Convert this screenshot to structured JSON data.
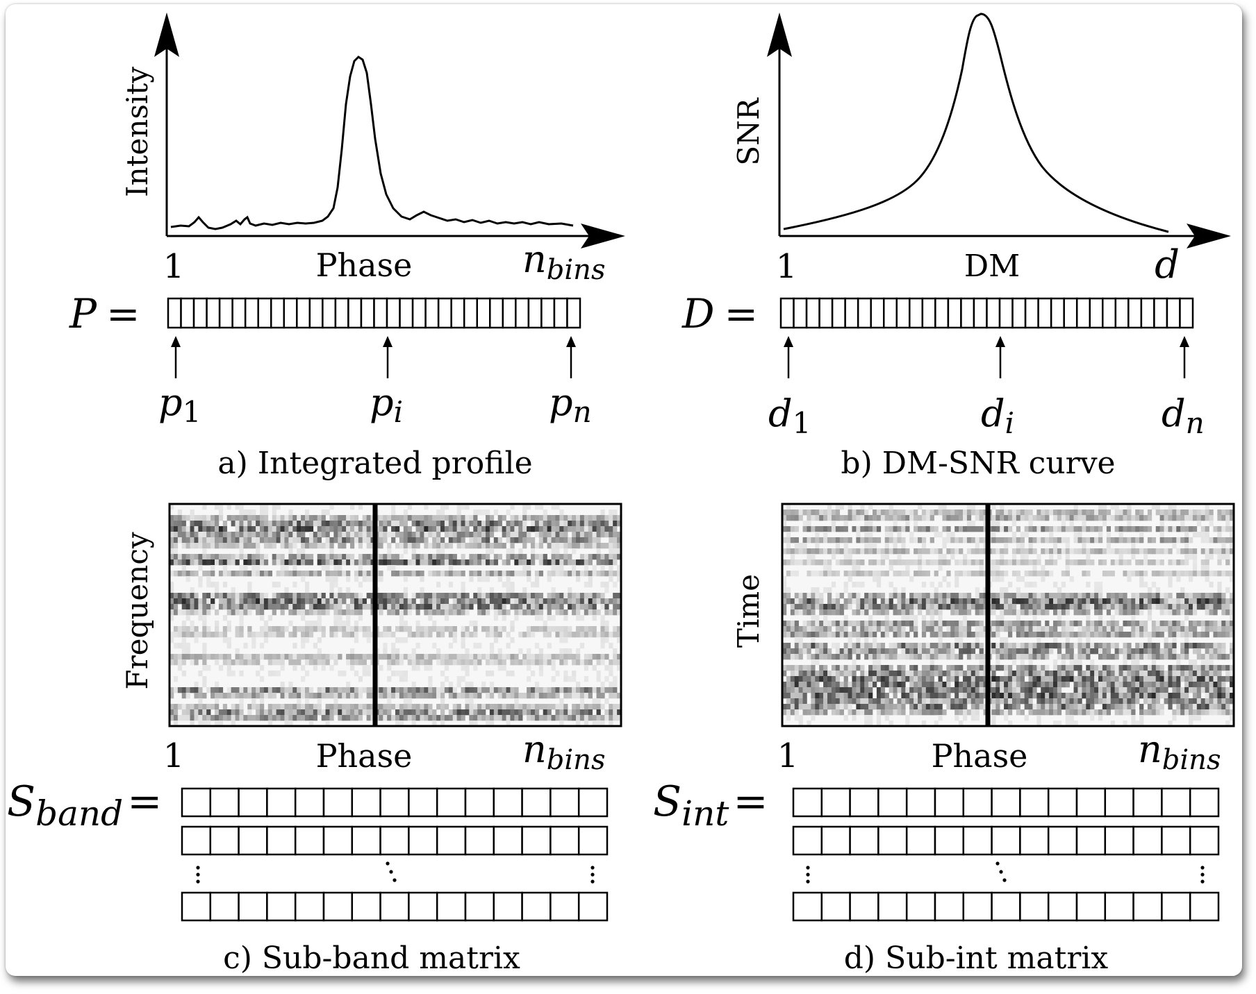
{
  "panel_a": {
    "ylabel": "Intensity",
    "xlabel": "Phase",
    "x_start": "1",
    "x_end_base": "n",
    "x_end_sub": "bins",
    "vector_name": "P",
    "vector_cells": 32,
    "pointers": [
      {
        "base": "p",
        "sub": "1"
      },
      {
        "base": "p",
        "sub": "i"
      },
      {
        "base": "p",
        "sub": "n"
      }
    ],
    "caption": "a) Integrated profile"
  },
  "panel_b": {
    "ylabel": "SNR",
    "xlabel": "DM",
    "x_start": "1",
    "x_end": "d",
    "vector_name": "D",
    "vector_cells": 32,
    "pointers": [
      {
        "base": "d",
        "sub": "1"
      },
      {
        "base": "d",
        "sub": "i"
      },
      {
        "base": "d",
        "sub": "n"
      }
    ],
    "caption": "b) DM-SNR curve"
  },
  "panel_c": {
    "ylabel": "Frequency",
    "xlabel": "Phase",
    "x_start": "1",
    "x_end_base": "n",
    "x_end_sub": "bins",
    "matrix_name_base": "S",
    "matrix_name_sub": "band",
    "row_cells": 15,
    "caption": "c) Sub-band matrix"
  },
  "panel_d": {
    "ylabel": "Time",
    "xlabel": "Phase",
    "x_start": "1",
    "x_end_base": "n",
    "x_end_sub": "bins",
    "matrix_name_base": "S",
    "matrix_name_sub": "int",
    "row_cells": 15,
    "caption": "d) Sub-int matrix"
  }
}
